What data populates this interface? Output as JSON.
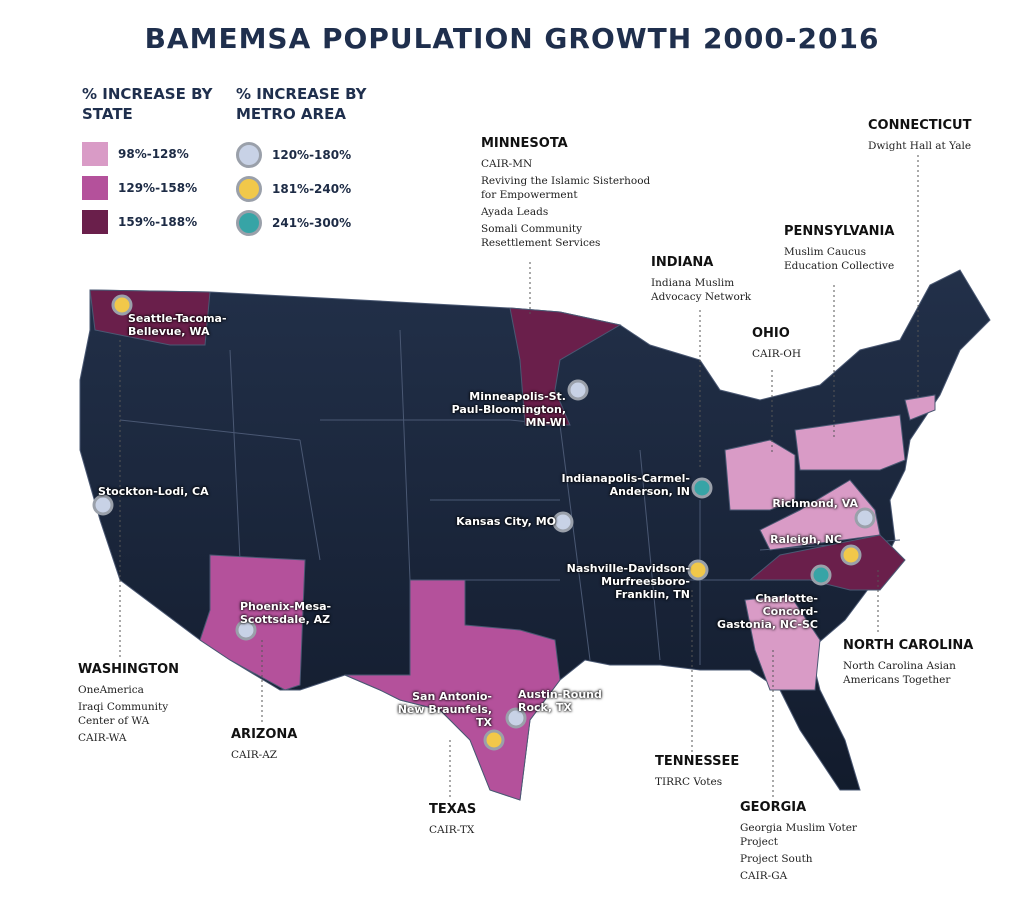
{
  "title": "BAMEMSA POPULATION GROWTH 2000-2016",
  "legend_state": {
    "title": "% INCREASE BY STATE",
    "items": [
      {
        "label": "98%-128%",
        "color": "#d99bc6"
      },
      {
        "label": "129%-158%",
        "color": "#b4519b"
      },
      {
        "label": "159%-188%",
        "color": "#6a1f4b"
      }
    ]
  },
  "legend_metro": {
    "title": "% INCREASE BY METRO AREA",
    "items": [
      {
        "label": "120%-180%",
        "color": "#c8d2e6"
      },
      {
        "label": "181%-240%",
        "color": "#f1c84a"
      },
      {
        "label": "241%-300%",
        "color": "#37a4a6"
      }
    ]
  },
  "metros": [
    {
      "label": "Seattle-Tacoma-Bellevue, WA",
      "level": 1
    },
    {
      "label": "Minneapolis-St. Paul-Bloomington, MN-WI",
      "level": 0
    },
    {
      "label": "Stockton-Lodi, CA",
      "level": 0
    },
    {
      "label": "Kansas City, MO",
      "level": 0
    },
    {
      "label": "Indianapolis-Carmel-Anderson, IN",
      "level": 2
    },
    {
      "label": "Richmond, VA",
      "level": 0
    },
    {
      "label": "Raleigh, NC",
      "level": 1
    },
    {
      "label": "Nashville-Davidson-Murfreesboro-Franklin, TN",
      "level": 1
    },
    {
      "label": "Charlotte-Concord-Gastonia, NC-SC",
      "level": 2
    },
    {
      "label": "Phoenix-Mesa-Scottsdale, AZ",
      "level": 0
    },
    {
      "label": "Austin-Round Rock, TX",
      "level": 0
    },
    {
      "label": "San Antonio-New Braunfels, TX",
      "level": 1
    }
  ],
  "annotations": [
    {
      "state": "MINNESOTA",
      "orgs": [
        "CAIR-MN",
        "Reviving the Islamic Sisterhood for Empowerment",
        "Ayada Leads",
        "Somali Community Resettlement Services"
      ]
    },
    {
      "state": "CONNECTICUT",
      "orgs": [
        "Dwight Hall at Yale"
      ]
    },
    {
      "state": "PENNSYLVANIA",
      "orgs": [
        "Muslim Caucus Education Collective"
      ]
    },
    {
      "state": "INDIANA",
      "orgs": [
        "Indiana Muslim Advocacy Network"
      ]
    },
    {
      "state": "OHIO",
      "orgs": [
        "CAIR-OH"
      ]
    },
    {
      "state": "WASHINGTON",
      "orgs": [
        "OneAmerica",
        "Iraqi Community Center of WA",
        "CAIR-WA"
      ]
    },
    {
      "state": "ARIZONA",
      "orgs": [
        "CAIR-AZ"
      ]
    },
    {
      "state": "TEXAS",
      "orgs": [
        "CAIR-TX"
      ]
    },
    {
      "state": "TENNESSEE",
      "orgs": [
        "TIRRC Votes"
      ]
    },
    {
      "state": "GEORGIA",
      "orgs": [
        "Georgia Muslim Voter Project",
        "Project South",
        "CAIR-GA"
      ]
    },
    {
      "state": "NORTH CAROLINA",
      "orgs": [
        "North Carolina Asian Americans Together"
      ]
    }
  ]
}
